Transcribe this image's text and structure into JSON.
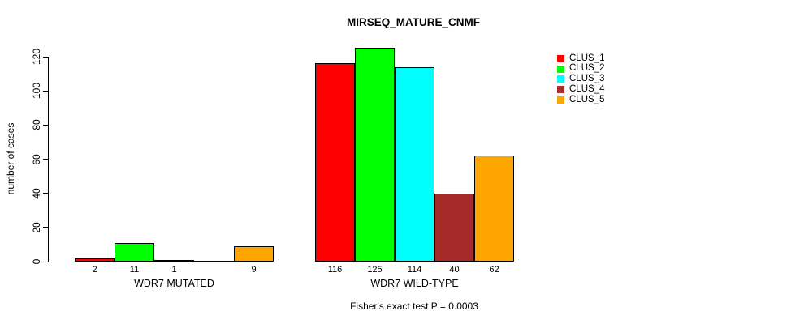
{
  "chart_data": {
    "type": "bar",
    "title": "MIRSEQ_MATURE_CNMF",
    "xlabel": "",
    "ylabel": "number of cases",
    "ylim": [
      0,
      120
    ],
    "yticks": [
      0,
      20,
      40,
      60,
      80,
      100,
      120
    ],
    "grid": false,
    "legend_position": "top-right-outside",
    "categories": [
      "WDR7 MUTATED",
      "WDR7 WILD-TYPE"
    ],
    "series": [
      {
        "name": "CLUS_1",
        "color": "#FF0000",
        "values": [
          2,
          116
        ]
      },
      {
        "name": "CLUS_2",
        "color": "#00FF00",
        "values": [
          11,
          125
        ]
      },
      {
        "name": "CLUS_3",
        "color": "#00FFFF",
        "values": [
          1,
          114
        ]
      },
      {
        "name": "CLUS_4",
        "color": "#A52A2A",
        "values": [
          0,
          40
        ]
      },
      {
        "name": "CLUS_5",
        "color": "#FFA500",
        "values": [
          9,
          62
        ]
      }
    ],
    "bar_value_labels": [
      [
        "2",
        "11",
        "1",
        "",
        "9"
      ],
      [
        "116",
        "125",
        "114",
        "40",
        "62"
      ]
    ],
    "annotation": "Fisher's exact test P = 0.0003"
  }
}
